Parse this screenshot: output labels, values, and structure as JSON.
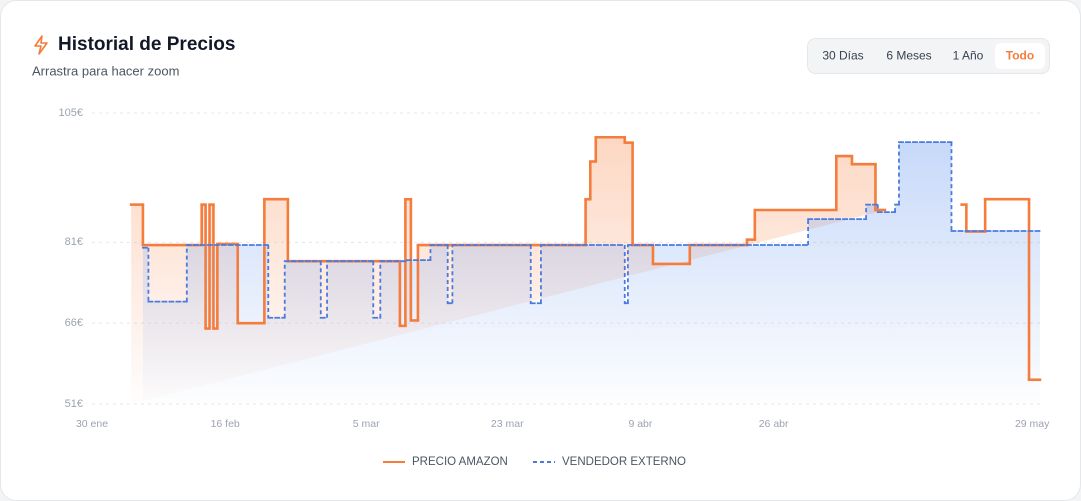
{
  "chart_data": {
    "type": "step-line",
    "title": "Historial de Precios",
    "subtitle": "Arrastra para hacer zoom",
    "xlim": [
      0,
      121
    ],
    "xticks": [
      {
        "value": 0,
        "label": "30 ene"
      },
      {
        "value": 17,
        "label": "16 feb"
      },
      {
        "value": 35,
        "label": "5 mar"
      },
      {
        "value": 53,
        "label": "23 mar"
      },
      {
        "value": 70,
        "label": "9 abr"
      },
      {
        "value": 87,
        "label": "26 abr"
      },
      {
        "value": 120,
        "label": "29 may"
      }
    ],
    "ylim": [
      51,
      105
    ],
    "yticks": [
      {
        "value": 51,
        "label": "51€"
      },
      {
        "value": 66,
        "label": "66€"
      },
      {
        "value": 81,
        "label": "81€"
      },
      {
        "value": 105,
        "label": "105€"
      }
    ],
    "grid": true,
    "series": [
      {
        "name": "PRECIO AMAZON",
        "color": "#f47c3c",
        "dash": false,
        "x": [
          5,
          6.5,
          14,
          14.5,
          15,
          15.5,
          16,
          18.6,
          22,
          25,
          39.3,
          40,
          40.7,
          41.6,
          63,
          63.6,
          64.3,
          68,
          69,
          71.6,
          76.3,
          83.6,
          84.6,
          95,
          97,
          100,
          101.2,
          111,
          111.6,
          114,
          119.6
        ],
        "values": [
          88,
          80.5,
          88,
          65,
          88,
          65,
          80.7,
          66,
          89,
          77.5,
          65.5,
          89,
          66.5,
          80.5,
          89,
          96,
          100.5,
          99.5,
          80.5,
          77,
          80.5,
          81.5,
          87,
          97,
          95.5,
          87,
          null,
          88,
          83,
          89,
          55.5
        ]
      },
      {
        "name": "VENDEDOR EXTERNO",
        "color": "#4a7ae0",
        "dash": true,
        "x": [
          6.5,
          7.2,
          12.1,
          22.5,
          24.6,
          29.2,
          30,
          35.9,
          36.8,
          40.2,
          43.2,
          45.4,
          46,
          56,
          57.3,
          68,
          68.4,
          91.4,
          98.8,
          100.3,
          102.5,
          103,
          109.7
        ],
        "values": [
          80,
          70,
          80.5,
          67,
          77.5,
          67,
          77.5,
          67,
          77.5,
          77.7,
          80.5,
          69.7,
          80.5,
          69.7,
          80.5,
          69.7,
          80.5,
          85.3,
          88,
          86.6,
          88,
          99.6,
          83.1
        ]
      }
    ]
  },
  "range_buttons": {
    "options": [
      "30 Días",
      "6 Meses",
      "1 Año",
      "Todo"
    ],
    "active": 3
  }
}
